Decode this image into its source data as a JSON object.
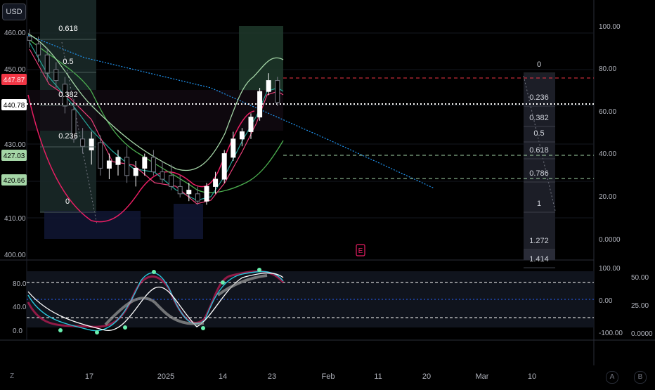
{
  "currency_button": "USD",
  "earnings_marker": "E",
  "bottom_left_button": "Z",
  "bottom_right_buttons": [
    "A",
    "B"
  ],
  "left_axis": {
    "labels": [
      "460.00",
      "450.00",
      "430.00",
      "410.00",
      "400.00"
    ],
    "price_tags": [
      {
        "label": "447.87",
        "color": "#f23645",
        "text_color": "#ffffff"
      },
      {
        "label": "440.78",
        "color": "#ffffff",
        "text_color": "#000000"
      },
      {
        "label": "427.03",
        "color": "#a5d6a7",
        "text_color": "#000000"
      },
      {
        "label": "420.66",
        "color": "#a5d6a7",
        "text_color": "#000000"
      }
    ]
  },
  "right_axis_main": [
    "100.00",
    "80.00",
    "60.00",
    "40.00",
    "20.00",
    "0.0000"
  ],
  "left_axis_osc": [
    "80.0",
    "40.0",
    "0.0"
  ],
  "right_axis_osc": {
    "inner": [
      "100.00",
      "0.00",
      "-100.00"
    ],
    "outer": [
      "50.00",
      "25.00",
      "0.0000"
    ]
  },
  "time_axis": [
    "17",
    "2025",
    "14",
    "23",
    "Feb",
    "11",
    "20",
    "Mar",
    "10"
  ],
  "fib_left": [
    "0.618",
    "0.5",
    "0.382",
    "0.236",
    "0"
  ],
  "fib_right": [
    "0",
    "0.236",
    "0.382",
    "0.5",
    "0.618",
    "0.786",
    "1",
    "1.272",
    "1.414"
  ],
  "colors": {
    "background": "#000000",
    "bull_candle": "#ffffff",
    "bear_candle": "#787b86",
    "pink_line": "#e91e63",
    "green_line": "#4caf50",
    "teal_line": "#26a69a",
    "blue_trend": "#2196f3",
    "red_level": "#f23645",
    "mint_level": "#a5d6a7"
  },
  "chart_data": {
    "type": "candlestick",
    "unit": "USD",
    "x_range": [
      "2024-12-11",
      "2025-03-14"
    ],
    "y_range": [
      400,
      465
    ],
    "candles": [
      {
        "t": "2024-12-11",
        "o": 459,
        "h": 461,
        "l": 456,
        "c": 458
      },
      {
        "t": "2024-12-12",
        "o": 457,
        "h": 459,
        "l": 452,
        "c": 454
      },
      {
        "t": "2024-12-13",
        "o": 454,
        "h": 456,
        "l": 447,
        "c": 449
      },
      {
        "t": "2024-12-16",
        "o": 450,
        "h": 452,
        "l": 445,
        "c": 447
      },
      {
        "t": "2024-12-17",
        "o": 446,
        "h": 448,
        "l": 438,
        "c": 440
      },
      {
        "t": "2024-12-18",
        "o": 439,
        "h": 442,
        "l": 430,
        "c": 431
      },
      {
        "t": "2024-12-19",
        "o": 431,
        "h": 434,
        "l": 427,
        "c": 429
      },
      {
        "t": "2024-12-20",
        "o": 428,
        "h": 433,
        "l": 424,
        "c": 431
      },
      {
        "t": "2024-12-23",
        "o": 430,
        "h": 432,
        "l": 421,
        "c": 423
      },
      {
        "t": "2024-12-24",
        "o": 423,
        "h": 427,
        "l": 420,
        "c": 425
      },
      {
        "t": "2024-12-26",
        "o": 424,
        "h": 428,
        "l": 421,
        "c": 426
      },
      {
        "t": "2024-12-27",
        "o": 426,
        "h": 429,
        "l": 419,
        "c": 421
      },
      {
        "t": "2024-12-30",
        "o": 421,
        "h": 425,
        "l": 418,
        "c": 423
      },
      {
        "t": "2024-12-31",
        "o": 423,
        "h": 427,
        "l": 421,
        "c": 426
      },
      {
        "t": "2025-01-02",
        "o": 426,
        "h": 428,
        "l": 421,
        "c": 422
      },
      {
        "t": "2025-01-03",
        "o": 422,
        "h": 425,
        "l": 419,
        "c": 420
      },
      {
        "t": "2025-01-06",
        "o": 421,
        "h": 424,
        "l": 417,
        "c": 418
      },
      {
        "t": "2025-01-07",
        "o": 418,
        "h": 421,
        "l": 415,
        "c": 416
      },
      {
        "t": "2025-01-08",
        "o": 416,
        "h": 419,
        "l": 414,
        "c": 417
      },
      {
        "t": "2025-01-10",
        "o": 416,
        "h": 418,
        "l": 413,
        "c": 414
      },
      {
        "t": "2025-01-13",
        "o": 414,
        "h": 419,
        "l": 413,
        "c": 418
      },
      {
        "t": "2025-01-14",
        "o": 418,
        "h": 422,
        "l": 416,
        "c": 420
      },
      {
        "t": "2025-01-15",
        "o": 420,
        "h": 428,
        "l": 419,
        "c": 427
      },
      {
        "t": "2025-01-16",
        "o": 426,
        "h": 433,
        "l": 425,
        "c": 431
      },
      {
        "t": "2025-01-17",
        "o": 431,
        "h": 434,
        "l": 429,
        "c": 433
      },
      {
        "t": "2025-01-21",
        "o": 433,
        "h": 438,
        "l": 431,
        "c": 437
      },
      {
        "t": "2025-01-22",
        "o": 437,
        "h": 445,
        "l": 436,
        "c": 444
      },
      {
        "t": "2025-01-23",
        "o": 444,
        "h": 449,
        "l": 443,
        "c": 447
      },
      {
        "t": "2025-01-24",
        "o": 447,
        "h": 448,
        "l": 440,
        "c": 441
      }
    ]
  }
}
